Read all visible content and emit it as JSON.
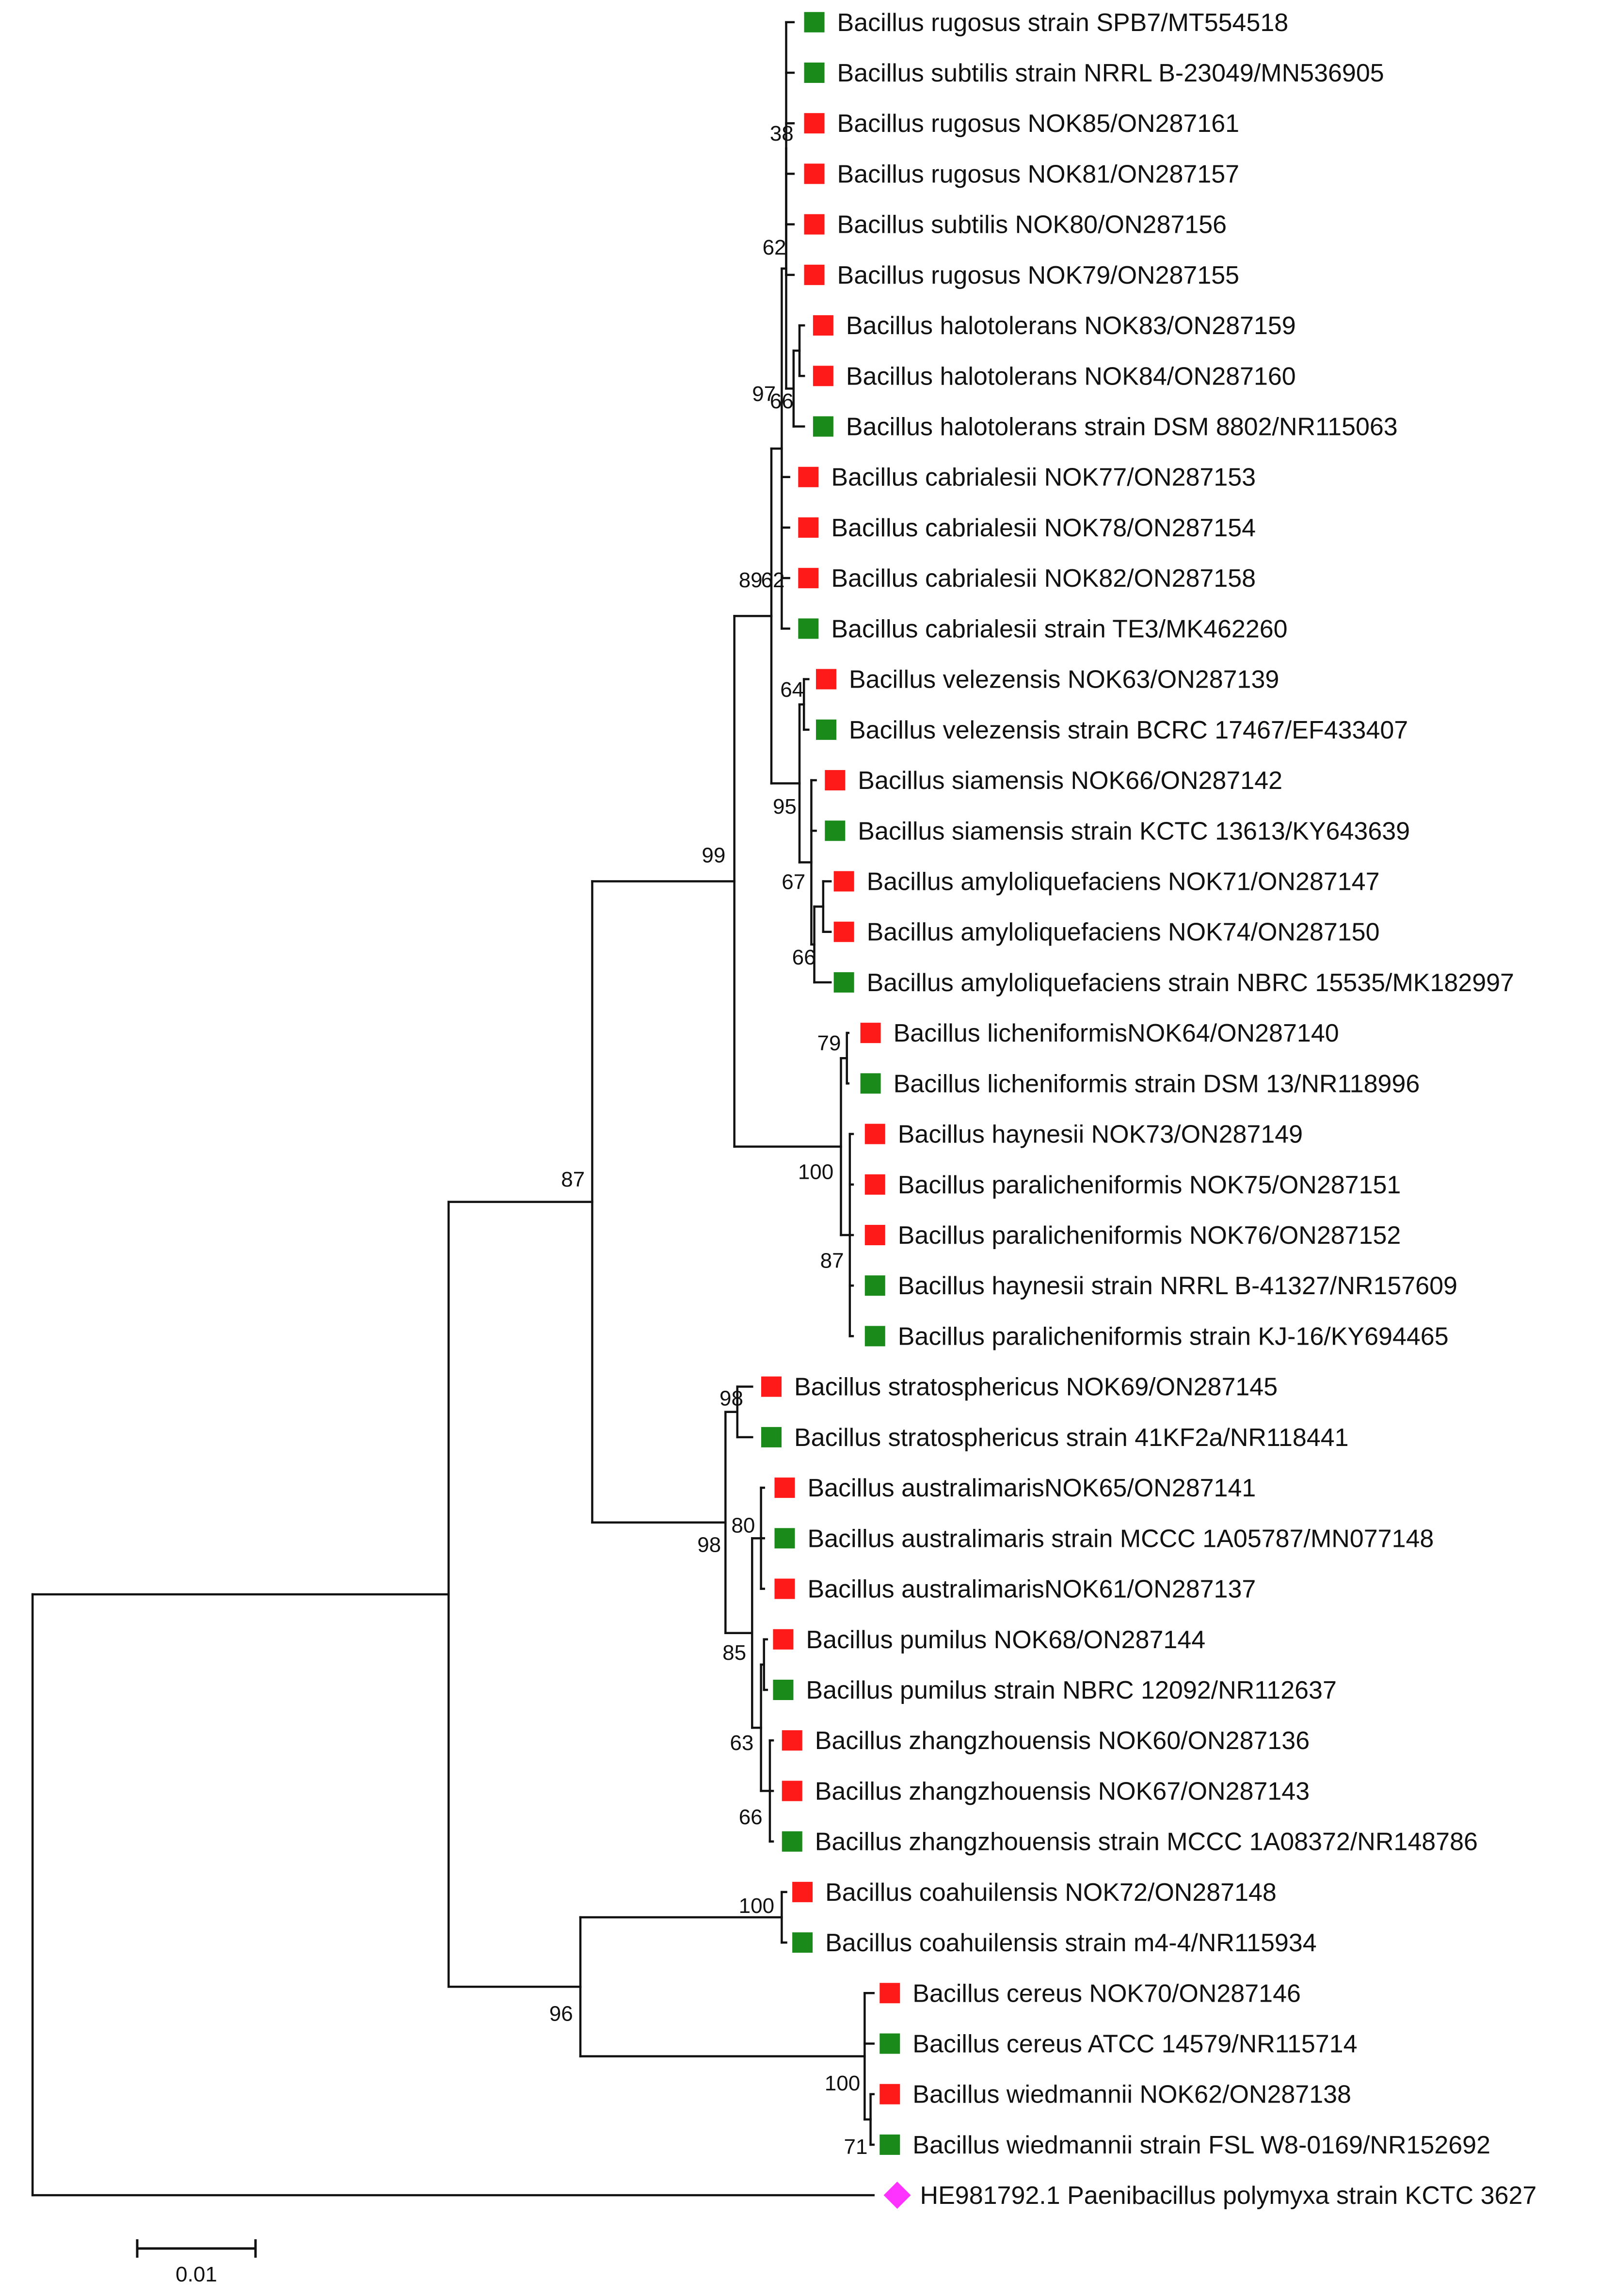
{
  "colors": {
    "line": "#111111",
    "reference": "#1a8a1a",
    "isolate": "#ff1a1a",
    "outgroup": "#ff33ff"
  },
  "taxa": [
    {
      "label": "Bacillus rugosus strain SPB7/MT554518",
      "group": "reference"
    },
    {
      "label": "Bacillus subtilis strain NRRL B-23049/MN536905",
      "group": "reference"
    },
    {
      "label": "Bacillus rugosus NOK85/ON287161",
      "group": "isolate"
    },
    {
      "label": "Bacillus rugosus NOK81/ON287157",
      "group": "isolate"
    },
    {
      "label": "Bacillus subtilis NOK80/ON287156",
      "group": "isolate"
    },
    {
      "label": "Bacillus rugosus NOK79/ON287155",
      "group": "isolate"
    },
    {
      "label": "Bacillus halotolerans NOK83/ON287159",
      "group": "isolate"
    },
    {
      "label": "Bacillus halotolerans NOK84/ON287160",
      "group": "isolate"
    },
    {
      "label": "Bacillus halotolerans strain DSM 8802/NR115063",
      "group": "reference"
    },
    {
      "label": "Bacillus cabrialesii NOK77/ON287153",
      "group": "isolate"
    },
    {
      "label": "Bacillus cabrialesii NOK78/ON287154",
      "group": "isolate"
    },
    {
      "label": "Bacillus cabrialesii NOK82/ON287158",
      "group": "isolate"
    },
    {
      "label": "Bacillus cabrialesii strain TE3/MK462260",
      "group": "reference"
    },
    {
      "label": "Bacillus velezensis NOK63/ON287139",
      "group": "isolate"
    },
    {
      "label": "Bacillus velezensis strain BCRC 17467/EF433407",
      "group": "reference"
    },
    {
      "label": "Bacillus siamensis NOK66/ON287142",
      "group": "isolate"
    },
    {
      "label": "Bacillus siamensis strain KCTC 13613/KY643639",
      "group": "reference"
    },
    {
      "label": "Bacillus amyloliquefaciens NOK71/ON287147",
      "group": "isolate"
    },
    {
      "label": "Bacillus amyloliquefaciens NOK74/ON287150",
      "group": "isolate"
    },
    {
      "label": "Bacillus amyloliquefaciens strain NBRC 15535/MK182997",
      "group": "reference"
    },
    {
      "label": "Bacillus licheniformisNOK64/ON287140",
      "group": "isolate"
    },
    {
      "label": "Bacillus licheniformis strain DSM 13/NR118996",
      "group": "reference"
    },
    {
      "label": "Bacillus haynesii NOK73/ON287149",
      "group": "isolate"
    },
    {
      "label": "Bacillus paralicheniformis NOK75/ON287151",
      "group": "isolate"
    },
    {
      "label": "Bacillus paralicheniformis NOK76/ON287152",
      "group": "isolate"
    },
    {
      "label": "Bacillus haynesii strain NRRL B-41327/NR157609",
      "group": "reference"
    },
    {
      "label": "Bacillus paralicheniformis strain KJ-16/KY694465",
      "group": "reference"
    },
    {
      "label": "Bacillus stratosphericus NOK69/ON287145",
      "group": "isolate"
    },
    {
      "label": "Bacillus stratosphericus strain 41KF2a/NR118441",
      "group": "reference"
    },
    {
      "label": "Bacillus australimarisNOK65/ON287141",
      "group": "isolate"
    },
    {
      "label": "Bacillus australimaris strain MCCC 1A05787/MN077148",
      "group": "reference"
    },
    {
      "label": "Bacillus australimarisNOK61/ON287137",
      "group": "isolate"
    },
    {
      "label": "Bacillus pumilus NOK68/ON287144",
      "group": "isolate"
    },
    {
      "label": "Bacillus pumilus strain NBRC 12092/NR112637",
      "group": "reference"
    },
    {
      "label": "Bacillus zhangzhouensis NOK60/ON287136",
      "group": "isolate"
    },
    {
      "label": "Bacillus zhangzhouensis NOK67/ON287143",
      "group": "isolate"
    },
    {
      "label": "Bacillus zhangzhouensis strain MCCC 1A08372/NR148786",
      "group": "reference"
    },
    {
      "label": "Bacillus coahuilensis NOK72/ON287148",
      "group": "isolate"
    },
    {
      "label": "Bacillus coahuilensis strain m4-4/NR115934",
      "group": "reference"
    },
    {
      "label": "Bacillus cereus NOK70/ON287146",
      "group": "isolate"
    },
    {
      "label": "Bacillus cereus ATCC 14579/NR115714",
      "group": "reference"
    },
    {
      "label": "Bacillus wiedmannii NOK62/ON287138",
      "group": "isolate"
    },
    {
      "label": "Bacillus wiedmannii strain FSL W8-0169/NR152692",
      "group": "reference"
    },
    {
      "label": "HE981792.1 Paenibacillus polymyxa strain KCTC 3627",
      "group": "outgroup"
    }
  ],
  "bootstrap": [
    "38",
    "62",
    "97",
    "66",
    "89",
    "62",
    "64",
    "95",
    "67",
    "66",
    "99",
    "79",
    "100",
    "87",
    "87",
    "98",
    "98",
    "80",
    "85",
    "63",
    "66",
    "100",
    "96",
    "100",
    "71"
  ],
  "scale_bar": {
    "label": "0.01"
  }
}
